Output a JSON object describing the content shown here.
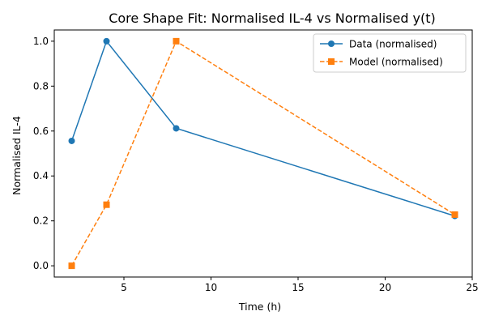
{
  "chart_data": {
    "type": "line",
    "title": "Core Shape Fit: Normalised IL-4 vs Normalised y(t)",
    "xlabel": "Time (h)",
    "ylabel": "Normalised IL-4",
    "xlim": [
      1.0,
      25.0
    ],
    "ylim": [
      -0.05,
      1.05
    ],
    "xticks": [
      5,
      10,
      15,
      20,
      25
    ],
    "yticks": [
      0.0,
      0.2,
      0.4,
      0.6,
      0.8,
      1.0
    ],
    "xtick_labels": [
      "5",
      "10",
      "15",
      "20",
      "25"
    ],
    "ytick_labels": [
      "0.0",
      "0.2",
      "0.4",
      "0.6",
      "0.8",
      "1.0"
    ],
    "grid": false,
    "legend_position": "top-right",
    "series": [
      {
        "name": "Data (normalised)",
        "color": "#1f77b4",
        "marker": "circle",
        "linestyle": "solid",
        "x": [
          2,
          4,
          8,
          24
        ],
        "y": [
          0.556,
          1.0,
          0.612,
          0.222
        ]
      },
      {
        "name": "Model (normalised)",
        "color": "#ff7f0e",
        "marker": "square",
        "linestyle": "dashed",
        "x": [
          2,
          4,
          8,
          24
        ],
        "y": [
          0.0,
          0.272,
          1.0,
          0.228
        ]
      }
    ]
  }
}
